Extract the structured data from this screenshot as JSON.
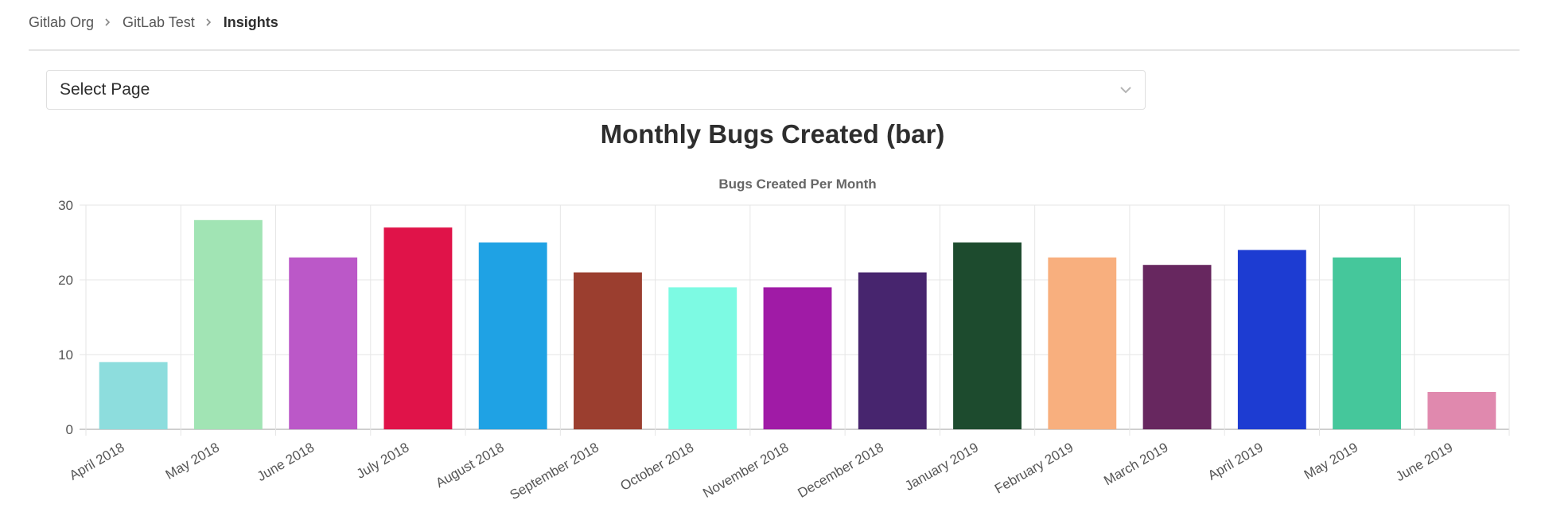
{
  "breadcrumb": {
    "items": [
      "Gitlab Org",
      "GitLab Test"
    ],
    "current": "Insights",
    "separator_icon": "chevron-right-icon"
  },
  "page_select": {
    "value": "Select Page",
    "icon": "chevron-down-icon"
  },
  "page_title": "Monthly Bugs Created (bar)",
  "chart_data": {
    "type": "bar",
    "title": "Bugs Created Per Month",
    "xlabel": "",
    "ylabel": "",
    "ylim": [
      0,
      30
    ],
    "yticks": [
      0,
      10,
      20,
      30
    ],
    "grid": true,
    "legend": "none",
    "categories": [
      "April 2018",
      "May 2018",
      "June 2018",
      "July 2018",
      "August 2018",
      "September 2018",
      "October 2018",
      "November 2018",
      "December 2018",
      "January 2019",
      "February 2019",
      "March 2019",
      "April 2019",
      "May 2019",
      "June 2019"
    ],
    "values": [
      9,
      28,
      23,
      27,
      25,
      21,
      19,
      19,
      21,
      25,
      23,
      22,
      24,
      23,
      5
    ],
    "colors": [
      "#8ddddd",
      "#a1e4b4",
      "#bb58c8",
      "#e01349",
      "#1fa2e4",
      "#9b3e2f",
      "#7dfae3",
      "#a01ba6",
      "#47256e",
      "#1d4b2e",
      "#f8af7e",
      "#67275f",
      "#1d3cd2",
      "#45c79b",
      "#e089ae"
    ]
  }
}
